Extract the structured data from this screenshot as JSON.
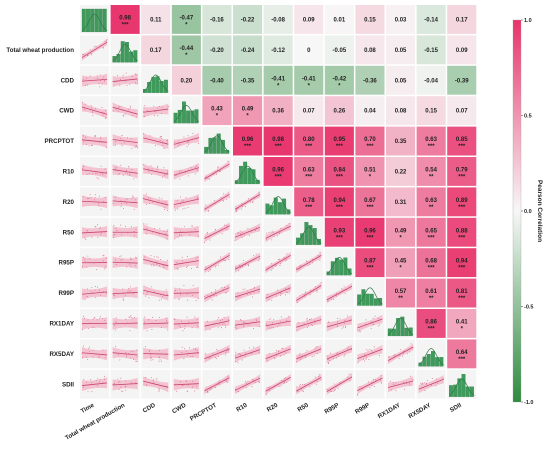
{
  "chart_data": {
    "type": "heatmap",
    "variables": [
      "Time",
      "Total wheat production",
      "CDD",
      "CWD",
      "PRCPTOT",
      "R10",
      "R20",
      "R50",
      "R95P",
      "R99P",
      "RX1DAY",
      "RX5DAY",
      "SDII"
    ],
    "correlations": [
      {
        "row": "Time",
        "col": "Total wheat production",
        "r": 0.98,
        "sig": "***"
      },
      {
        "row": "Time",
        "col": "CDD",
        "r": 0.11,
        "sig": ""
      },
      {
        "row": "Time",
        "col": "CWD",
        "r": -0.47,
        "sig": "*"
      },
      {
        "row": "Time",
        "col": "PRCPTOT",
        "r": -0.16,
        "sig": ""
      },
      {
        "row": "Time",
        "col": "R10",
        "r": -0.22,
        "sig": ""
      },
      {
        "row": "Time",
        "col": "R20",
        "r": -0.08,
        "sig": ""
      },
      {
        "row": "Time",
        "col": "R50",
        "r": 0.09,
        "sig": ""
      },
      {
        "row": "Time",
        "col": "R95P",
        "r": 0.01,
        "sig": ""
      },
      {
        "row": "Time",
        "col": "R99P",
        "r": 0.15,
        "sig": ""
      },
      {
        "row": "Time",
        "col": "RX1DAY",
        "r": 0.03,
        "sig": ""
      },
      {
        "row": "Time",
        "col": "RX5DAY",
        "r": -0.14,
        "sig": ""
      },
      {
        "row": "Time",
        "col": "SDII",
        "r": 0.17,
        "sig": ""
      },
      {
        "row": "Total wheat production",
        "col": "CDD",
        "r": 0.17,
        "sig": ""
      },
      {
        "row": "Total wheat production",
        "col": "CWD",
        "r": -0.44,
        "sig": "*"
      },
      {
        "row": "Total wheat production",
        "col": "PRCPTOT",
        "r": -0.2,
        "sig": ""
      },
      {
        "row": "Total wheat production",
        "col": "R10",
        "r": -0.24,
        "sig": ""
      },
      {
        "row": "Total wheat production",
        "col": "R20",
        "r": -0.12,
        "sig": ""
      },
      {
        "row": "Total wheat production",
        "col": "R50",
        "r": 0,
        "sig": ""
      },
      {
        "row": "Total wheat production",
        "col": "R95P",
        "r": -0.05,
        "sig": ""
      },
      {
        "row": "Total wheat production",
        "col": "R99P",
        "r": 0.08,
        "sig": ""
      },
      {
        "row": "Total wheat production",
        "col": "RX1DAY",
        "r": 0.05,
        "sig": ""
      },
      {
        "row": "Total wheat production",
        "col": "RX5DAY",
        "r": -0.15,
        "sig": ""
      },
      {
        "row": "Total wheat production",
        "col": "SDII",
        "r": 0.09,
        "sig": ""
      },
      {
        "row": "CDD",
        "col": "CWD",
        "r": 0.2,
        "sig": ""
      },
      {
        "row": "CDD",
        "col": "PRCPTOT",
        "r": -0.4,
        "sig": ""
      },
      {
        "row": "CDD",
        "col": "R10",
        "r": -0.35,
        "sig": ""
      },
      {
        "row": "CDD",
        "col": "R20",
        "r": -0.41,
        "sig": "*"
      },
      {
        "row": "CDD",
        "col": "R50",
        "r": -0.41,
        "sig": "*"
      },
      {
        "row": "CDD",
        "col": "R95P",
        "r": -0.42,
        "sig": "*"
      },
      {
        "row": "CDD",
        "col": "R99P",
        "r": -0.36,
        "sig": ""
      },
      {
        "row": "CDD",
        "col": "RX1DAY",
        "r": 0.05,
        "sig": ""
      },
      {
        "row": "CDD",
        "col": "RX5DAY",
        "r": -0.04,
        "sig": ""
      },
      {
        "row": "CDD",
        "col": "SDII",
        "r": -0.39,
        "sig": ""
      },
      {
        "row": "CWD",
        "col": "PRCPTOT",
        "r": 0.43,
        "sig": "*"
      },
      {
        "row": "CWD",
        "col": "R10",
        "r": 0.49,
        "sig": "*"
      },
      {
        "row": "CWD",
        "col": "R20",
        "r": 0.36,
        "sig": ""
      },
      {
        "row": "CWD",
        "col": "R50",
        "r": 0.07,
        "sig": ""
      },
      {
        "row": "CWD",
        "col": "R95P",
        "r": 0.26,
        "sig": ""
      },
      {
        "row": "CWD",
        "col": "R99P",
        "r": 0.04,
        "sig": ""
      },
      {
        "row": "CWD",
        "col": "RX1DAY",
        "r": 0.08,
        "sig": ""
      },
      {
        "row": "CWD",
        "col": "RX5DAY",
        "r": 0.15,
        "sig": ""
      },
      {
        "row": "CWD",
        "col": "SDII",
        "r": 0.07,
        "sig": ""
      },
      {
        "row": "PRCPTOT",
        "col": "R10",
        "r": 0.96,
        "sig": "***"
      },
      {
        "row": "PRCPTOT",
        "col": "R20",
        "r": 0.98,
        "sig": "***"
      },
      {
        "row": "PRCPTOT",
        "col": "R50",
        "r": 0.8,
        "sig": "***"
      },
      {
        "row": "PRCPTOT",
        "col": "R95P",
        "r": 0.95,
        "sig": "***"
      },
      {
        "row": "PRCPTOT",
        "col": "R99P",
        "r": 0.7,
        "sig": "***"
      },
      {
        "row": "PRCPTOT",
        "col": "RX1DAY",
        "r": 0.35,
        "sig": ""
      },
      {
        "row": "PRCPTOT",
        "col": "RX5DAY",
        "r": 0.63,
        "sig": "***"
      },
      {
        "row": "PRCPTOT",
        "col": "SDII",
        "r": 0.85,
        "sig": "***"
      },
      {
        "row": "R10",
        "col": "R20",
        "r": 0.96,
        "sig": "***"
      },
      {
        "row": "R10",
        "col": "R50",
        "r": 0.63,
        "sig": "***"
      },
      {
        "row": "R10",
        "col": "R95P",
        "r": 0.84,
        "sig": "***"
      },
      {
        "row": "R10",
        "col": "R99P",
        "r": 0.51,
        "sig": "*"
      },
      {
        "row": "R10",
        "col": "RX1DAY",
        "r": 0.22,
        "sig": ""
      },
      {
        "row": "R10",
        "col": "RX5DAY",
        "r": 0.54,
        "sig": "**"
      },
      {
        "row": "R10",
        "col": "SDII",
        "r": 0.79,
        "sig": "***"
      },
      {
        "row": "R20",
        "col": "R50",
        "r": 0.78,
        "sig": "***"
      },
      {
        "row": "R20",
        "col": "R95P",
        "r": 0.94,
        "sig": "***"
      },
      {
        "row": "R20",
        "col": "R99P",
        "r": 0.67,
        "sig": "***"
      },
      {
        "row": "R20",
        "col": "RX1DAY",
        "r": 0.31,
        "sig": ""
      },
      {
        "row": "R20",
        "col": "RX5DAY",
        "r": 0.63,
        "sig": "**"
      },
      {
        "row": "R20",
        "col": "SDII",
        "r": 0.89,
        "sig": "***"
      },
      {
        "row": "R50",
        "col": "R95P",
        "r": 0.93,
        "sig": "***"
      },
      {
        "row": "R50",
        "col": "R99P",
        "r": 0.96,
        "sig": "***"
      },
      {
        "row": "R50",
        "col": "RX1DAY",
        "r": 0.49,
        "sig": "*"
      },
      {
        "row": "R50",
        "col": "RX5DAY",
        "r": 0.65,
        "sig": "***"
      },
      {
        "row": "R50",
        "col": "SDII",
        "r": 0.88,
        "sig": "***"
      },
      {
        "row": "R95P",
        "col": "R99P",
        "r": 0.87,
        "sig": "***"
      },
      {
        "row": "R95P",
        "col": "RX1DAY",
        "r": 0.45,
        "sig": "*"
      },
      {
        "row": "R95P",
        "col": "RX5DAY",
        "r": 0.68,
        "sig": "***"
      },
      {
        "row": "R95P",
        "col": "SDII",
        "r": 0.94,
        "sig": "***"
      },
      {
        "row": "R99P",
        "col": "RX1DAY",
        "r": 0.57,
        "sig": "**"
      },
      {
        "row": "R99P",
        "col": "RX5DAY",
        "r": 0.61,
        "sig": "**"
      },
      {
        "row": "R99P",
        "col": "SDII",
        "r": 0.81,
        "sig": "***"
      },
      {
        "row": "RX1DAY",
        "col": "RX5DAY",
        "r": 0.86,
        "sig": "***"
      },
      {
        "row": "RX1DAY",
        "col": "SDII",
        "r": 0.41,
        "sig": "*"
      },
      {
        "row": "RX5DAY",
        "col": "SDII",
        "r": 0.64,
        "sig": "***"
      }
    ],
    "colorbar": {
      "title": "Pearson Correlation",
      "ticks": [
        1.0,
        0.5,
        0.0,
        -0.5,
        -1.0
      ],
      "range": [
        -1.0,
        1.0
      ],
      "colors": {
        "positive": "#e8336b",
        "neutral": "#f7f7f7",
        "negative": "#2e8b3e"
      }
    },
    "lower_triangle": "scatter with linear fit",
    "diagonal": "histogram with density curve",
    "upper_triangle": "correlation coefficient tiles"
  }
}
